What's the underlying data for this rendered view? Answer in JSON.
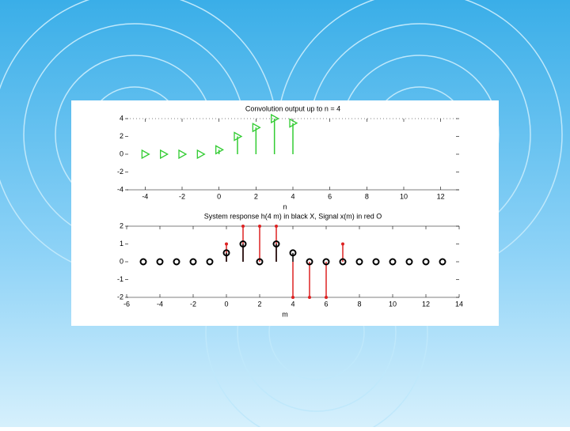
{
  "chart_data": [
    {
      "type": "stem",
      "title": "Convolution output up to n = 4",
      "xlabel": "n",
      "xlim": [
        -5,
        13
      ],
      "ylim": [
        -4,
        4
      ],
      "xticks": [
        -4,
        -2,
        0,
        2,
        4,
        6,
        8,
        10,
        12
      ],
      "yticks": [
        4,
        2,
        0,
        -2,
        -4
      ],
      "series": [
        {
          "color": "#33cc33",
          "marker": "triangle",
          "x": [
            -4,
            -3,
            -2,
            -1,
            0,
            1,
            2,
            3,
            4
          ],
          "values": [
            0,
            0,
            0,
            0,
            0.5,
            2,
            3,
            4,
            3.5
          ]
        }
      ]
    },
    {
      "type": "stem",
      "title": "System response h(4 m) in black X, Signal x(m) in red O",
      "xlabel": "m",
      "xlim": [
        -6,
        14
      ],
      "ylim": [
        -2,
        2
      ],
      "xticks": [
        -6,
        -4,
        -2,
        0,
        2,
        4,
        6,
        8,
        10,
        12,
        14
      ],
      "yticks": [
        2,
        1,
        0,
        -1,
        -2
      ],
      "series": [
        {
          "color": "#dd2222",
          "marker": "star",
          "x": [
            0,
            1,
            2,
            3,
            4,
            5,
            6,
            7
          ],
          "values": [
            1,
            2,
            2,
            2,
            -2,
            -2,
            -2,
            1
          ]
        },
        {
          "color": "#000000",
          "marker": "circle",
          "x": [
            -5,
            -4,
            -3,
            -2,
            -1,
            0,
            1,
            2,
            3,
            4,
            5,
            6,
            7,
            8,
            9,
            10,
            11,
            12,
            13
          ],
          "values": [
            0,
            0,
            0,
            0,
            0,
            0.5,
            1,
            0,
            1,
            0.5,
            0,
            0,
            0,
            0,
            0,
            0,
            0,
            0,
            0
          ]
        }
      ]
    }
  ]
}
